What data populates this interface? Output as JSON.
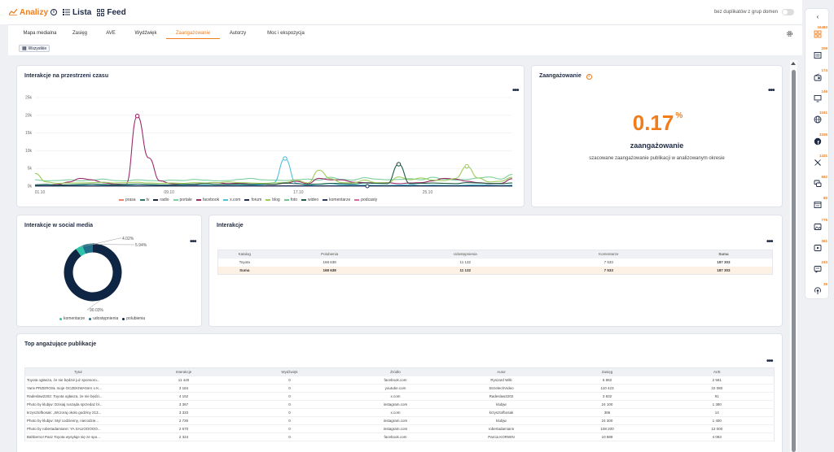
{
  "topbar": {
    "brand": "Analizy",
    "nav_lista": "Lista",
    "nav_feed": "Feed",
    "toggle_label": "bez duplikatów z grup domen"
  },
  "tabs": [
    {
      "label": "Mapa medialna",
      "w": 58
    },
    {
      "label": "Zasięg",
      "w": 40
    },
    {
      "label": "AVE",
      "w": 36
    },
    {
      "label": "Wydźwięk",
      "w": 50
    },
    {
      "label": "Zaangażowanie",
      "w": 66,
      "active": true
    },
    {
      "label": "Autorzy",
      "w": 44
    },
    {
      "label": "Moc i ekspozycja",
      "w": 74
    }
  ],
  "filter_chip": "Wszystkie",
  "timeline": {
    "title": "Interakcje na przestrzeni czasu",
    "chart_data": {
      "type": "line",
      "y_ticks": [
        "25k",
        "20k",
        "15k",
        "10k",
        "5k",
        "0k"
      ],
      "x_ticks": [
        "01.10",
        "09.10",
        "17.10",
        "25.10"
      ],
      "ylim": [
        0,
        25000
      ],
      "series": [
        {
          "name": "prasa",
          "color": "#e8806a",
          "values": []
        },
        {
          "name": "tv",
          "color": "#2a7a6b",
          "values": []
        },
        {
          "name": "radio",
          "color": "#1a2540",
          "values": []
        },
        {
          "name": "portale",
          "color": "#7fcfa0",
          "values": [
            1800,
            1500,
            1600,
            1800,
            1500,
            1700,
            2000,
            1600,
            1500,
            1800,
            1600,
            1500,
            1700,
            1600,
            1900,
            1700,
            1500,
            1600,
            1900,
            2200,
            1800,
            1700,
            1600,
            1800,
            2000,
            1700,
            2500,
            1900,
            1700,
            2400,
            2000,
            1800,
            1900,
            2100,
            1800,
            2500,
            2000,
            1700,
            1900,
            2300,
            2600,
            2000,
            3300
          ]
        },
        {
          "name": "facebook",
          "color": "#9b2a6b",
          "values": [
            300,
            400,
            500,
            1200,
            2200,
            1800,
            1000,
            600,
            500,
            19800,
            8000,
            1500,
            700,
            500,
            400,
            900,
            1000,
            700,
            800,
            600,
            500,
            500,
            800,
            1400,
            700,
            2200,
            1800,
            1800,
            1100,
            1000,
            900,
            1000,
            700,
            900,
            1000,
            1500,
            2200,
            2000,
            1400,
            1000,
            700,
            800,
            2100
          ]
        },
        {
          "name": "x.com",
          "color": "#4fc1d9",
          "values": [
            200,
            200,
            300,
            200,
            300,
            200,
            300,
            200,
            300,
            200,
            200,
            300,
            200,
            300,
            250,
            300,
            200,
            200,
            300,
            300,
            400,
            1000,
            7800,
            800,
            300,
            500,
            700,
            400,
            300,
            300,
            250,
            200,
            300,
            400,
            200,
            300,
            250,
            200,
            300,
            400,
            300,
            200,
            300
          ]
        },
        {
          "name": "forum",
          "color": "#1e2e56",
          "values": [
            100,
            100,
            100,
            100,
            100,
            100,
            100,
            100,
            100,
            100,
            100,
            100,
            100,
            100,
            100,
            100,
            100,
            100,
            100,
            100,
            100,
            100,
            100,
            100,
            100,
            100,
            100,
            100,
            100,
            100,
            100,
            100,
            100,
            100,
            100,
            100,
            100,
            100,
            100,
            100,
            100,
            100,
            100
          ]
        },
        {
          "name": "blog",
          "color": "#9ccc5a",
          "values": [
            3600,
            1200,
            800,
            900,
            900,
            1000,
            1100,
            900,
            1000,
            1100,
            900,
            800,
            900,
            800,
            1000,
            900,
            1000,
            1200,
            1000,
            900,
            800,
            900,
            1000,
            1700,
            900,
            4500,
            2100,
            1000,
            900,
            1700,
            1000,
            900,
            2600,
            1800,
            2300,
            1700,
            1600,
            2200,
            5600,
            2300,
            1200,
            1400,
            2500
          ]
        },
        {
          "name": "foto",
          "color": "#6bc98e",
          "values": []
        },
        {
          "name": "wideo",
          "color": "#1f5c46",
          "values": [
            400,
            500,
            300,
            400,
            500,
            600,
            500,
            400,
            500,
            600,
            500,
            400,
            400,
            500,
            600,
            700,
            500,
            500,
            600,
            500,
            600,
            500,
            900,
            700,
            500,
            600,
            800,
            700,
            600,
            900,
            800,
            700,
            6200,
            700,
            800,
            900,
            800,
            700,
            1000,
            900,
            800,
            700,
            900
          ]
        },
        {
          "name": "komentarze",
          "color": "#2a3a68",
          "values": []
        },
        {
          "name": "podcasty",
          "color": "#d66aa5",
          "values": []
        }
      ]
    }
  },
  "engagement": {
    "title": "Zaangażowanie",
    "value": "0.17",
    "unit": "%",
    "label": "zaangażowanie",
    "description": "szacowane zaangażowanie publikacji w analizowanym okresie"
  },
  "social": {
    "title": "Interakcje w social media",
    "chart_data": {
      "type": "pie",
      "slices": [
        {
          "name": "komentarze",
          "value": 4.02,
          "label": "4.02%",
          "color": "#2bc4a8"
        },
        {
          "name": "udostępnienia",
          "value": 5.94,
          "label": "5.94%",
          "color": "#1f6f8b"
        },
        {
          "name": "polubienia",
          "value": 90.03,
          "label": "90.03%",
          "color": "#0f2544"
        }
      ]
    },
    "legend": [
      "komentarze",
      "udostępnienia",
      "polubienia"
    ]
  },
  "interactions": {
    "title": "Interakcje",
    "headers": [
      "Katalog",
      "Polubienia",
      "Udostępnienia",
      "Komentarze",
      "Suma"
    ],
    "rows": [
      [
        "Toyota",
        "168 638",
        "11 132",
        "7 533",
        "187 303"
      ]
    ],
    "sum": [
      "Suma",
      "168 638",
      "11 132",
      "7 533",
      "187 303"
    ]
  },
  "publications": {
    "title": "Top angażujące publikacje",
    "headers": [
      "Tytuł",
      "Interakcje",
      "Wydźwięk",
      "Źródło",
      "Autor",
      "Zasięg",
      "AVE"
    ],
    "rows": [
      [
        "Toyota ogłasza, że nie będzie już sponsoro...",
        "11 440",
        "0",
        "facebook.com",
        "Ryszard Wilk",
        "6 882",
        "2 581"
      ],
      [
        "Yaris PRZEROSŁ moje OCZEKIWANIA! o K...",
        "3 184",
        "0",
        "youtube.com",
        "StrzelechVideo",
        "110 423",
        "22 080"
      ],
      [
        "Radeslaw2202: Toyota ogłasza, że nie będzi...",
        "4 152",
        "0",
        "x.com",
        "Radeslaw2202",
        "3 832",
        "91"
      ],
      [
        "Photo by klubjw: Dzisiaj rusząda sprzedaż bl...",
        "3 367",
        "0",
        "instagram.com",
        "klubjw",
        "24 100",
        "1 380"
      ],
      [
        "krzysztofbosak: „Wczoraj około godziny 213...",
        "3 333",
        "0",
        "x.com",
        "krzysztofbosak",
        "386",
        "14"
      ],
      [
        "Photo by klubjw: Styl codzienny, niecodzie...",
        "2 730",
        "0",
        "instagram.com",
        "klubjw",
        "24 300",
        "1 400"
      ],
      [
        "Photo by robertadamiann: YA SALIOOOOO...",
        "2 670",
        "0",
        "instagram.com",
        "robertadamiann",
        "108 200",
        "12 000"
      ],
      [
        "Bahberno! Pasz Toyota wysyłuje się ze spo...",
        "2 324",
        "0",
        "facebook.com",
        "Parcia KORWIN",
        "10 889",
        "4 083"
      ]
    ]
  },
  "sidebar": [
    {
      "count": "16483",
      "icon": "grid-icon",
      "active": true
    },
    {
      "count": "209",
      "icon": "newspaper-icon"
    },
    {
      "count": "174",
      "icon": "radio-icon"
    },
    {
      "count": "146",
      "icon": "monitor-icon"
    },
    {
      "count": "1041",
      "icon": "globe-icon"
    },
    {
      "count": "3335",
      "icon": "facebook-icon"
    },
    {
      "count": "1431",
      "icon": "x-icon"
    },
    {
      "count": "682",
      "icon": "forum-icon"
    },
    {
      "count": "80",
      "icon": "blog-icon"
    },
    {
      "count": "775",
      "icon": "photo-icon"
    },
    {
      "count": "361",
      "icon": "video-icon"
    },
    {
      "count": "243",
      "icon": "comments-icon"
    },
    {
      "count": "35",
      "icon": "podcast-icon"
    }
  ],
  "colors": {
    "accent": "#f07d1a",
    "navy": "#1e2a44"
  }
}
